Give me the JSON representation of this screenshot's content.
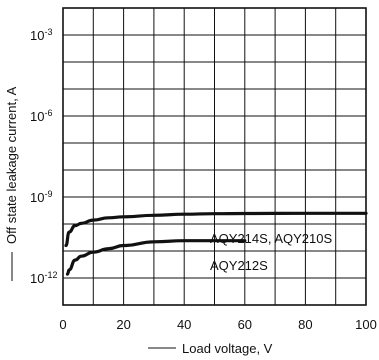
{
  "chart_data": {
    "type": "line",
    "title": "",
    "xlabel": "Load voltage, V",
    "ylabel": "Off state leakage current, A",
    "xlim": [
      0,
      100
    ],
    "ylim_log10": [
      -13,
      -2
    ],
    "y_scale": "log",
    "grid": true,
    "x_ticks": [
      {
        "value": 0,
        "label": "0"
      },
      {
        "value": 20,
        "label": "20"
      },
      {
        "value": 40,
        "label": "40"
      },
      {
        "value": 60,
        "label": "60"
      },
      {
        "value": 80,
        "label": "80"
      },
      {
        "value": 100,
        "label": "100"
      }
    ],
    "y_ticks": [
      {
        "value": 0.001,
        "base": "10",
        "exp": "-3"
      },
      {
        "value": 1e-06,
        "base": "10",
        "exp": "-6"
      },
      {
        "value": 1e-09,
        "base": "10",
        "exp": "-9"
      },
      {
        "value": 1e-12,
        "base": "10",
        "exp": "-12"
      }
    ],
    "series": [
      {
        "name": "AQY214S, AQY210S",
        "x": [
          1,
          2,
          4,
          6,
          10,
          15,
          20,
          30,
          40,
          50,
          60,
          80,
          100
        ],
        "y": [
          1.6e-11,
          5e-11,
          8.7e-11,
          1.05e-10,
          1.4e-10,
          1.7e-10,
          1.85e-10,
          2.1e-10,
          2.3e-10,
          2.4e-10,
          2.45e-10,
          2.48e-10,
          2.5e-10
        ]
      },
      {
        "name": "AQY212S",
        "x": [
          1.5,
          2,
          4,
          6,
          10,
          15,
          20,
          30,
          40,
          50,
          60
        ],
        "y": [
          1.4e-12,
          2e-12,
          4.6e-12,
          6.4e-12,
          9e-12,
          1.22e-11,
          1.6e-11,
          2.2e-11,
          2.4e-11,
          2.4e-11,
          2.4e-11
        ]
      }
    ]
  }
}
